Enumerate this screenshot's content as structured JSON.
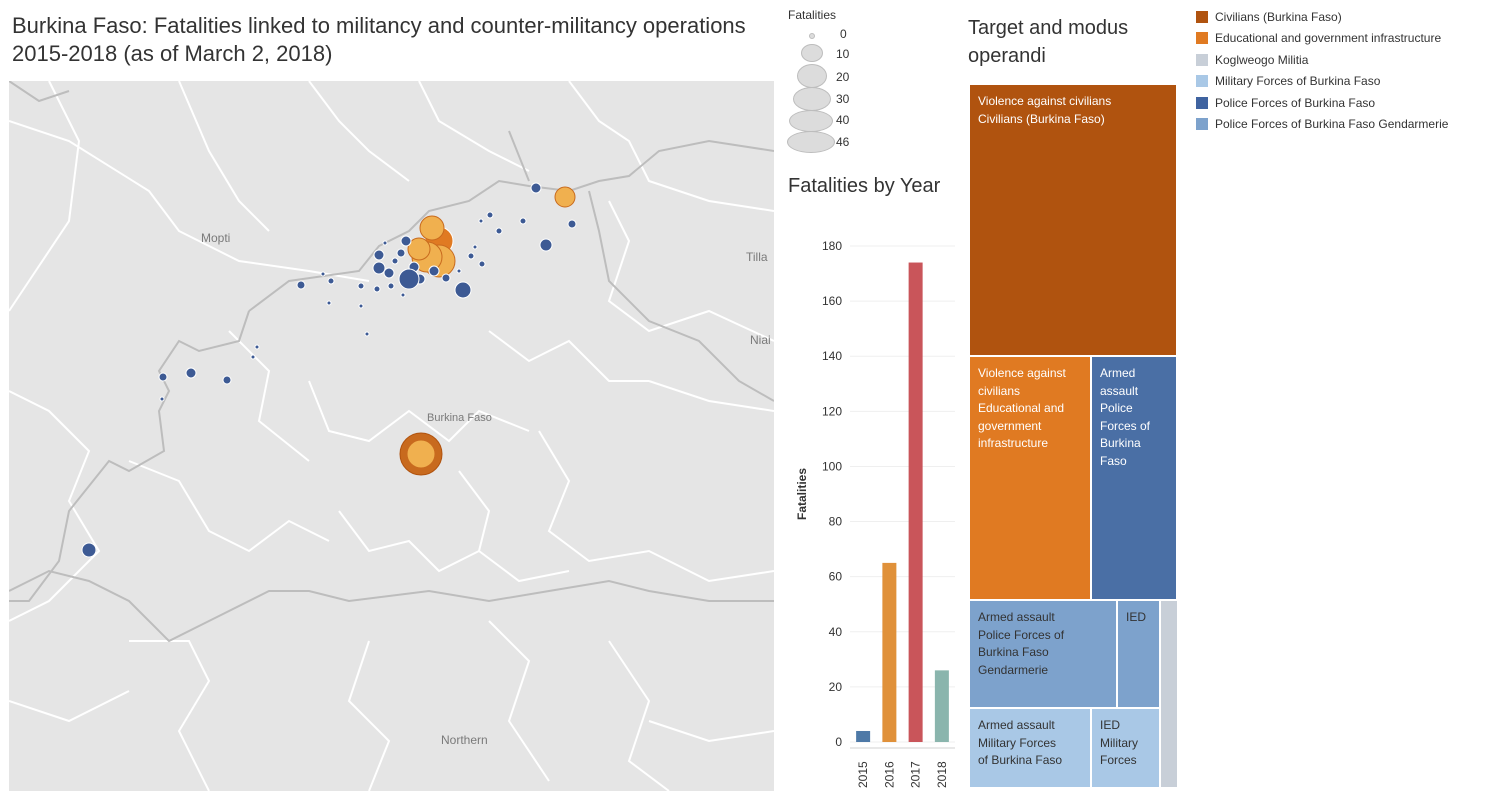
{
  "title": "Burkina Faso: Fatalities linked to militancy and counter-militancy operations 2015-2018 (as of March 2, 2018)",
  "map": {
    "labels": [
      "Mopti",
      "Burkina Faso",
      "Tilla",
      "Niai",
      "Northern"
    ],
    "colors": {
      "land": "#e5e5e5",
      "border": "#ffffff",
      "outline": "#b5b5b5",
      "dot_blue": "#3d5a94",
      "dot_orange": "#f0b04f",
      "dot_orange_dark": "#c86a1e"
    }
  },
  "size_legend": {
    "header": "Fatalities",
    "values": [
      "0",
      "10",
      "20",
      "30",
      "40",
      "46"
    ]
  },
  "year_chart_title": "Fatalities by Year",
  "chart_data": [
    {
      "type": "bar",
      "title": "Fatalities by Year",
      "xlabel": "",
      "ylabel": "Fatalities",
      "categories": [
        "2015",
        "2016",
        "2017",
        "2018"
      ],
      "values": [
        4,
        65,
        174,
        26
      ],
      "colors": [
        "#4e79a7",
        "#e0913a",
        "#c9555a",
        "#8ab5ad"
      ],
      "ylim": [
        0,
        180
      ],
      "yticks": [
        "0",
        "20",
        "40",
        "60",
        "80",
        "100",
        "120",
        "140",
        "160",
        "180"
      ],
      "grid": true
    },
    {
      "type": "treemap",
      "title": "Target and modus operandi",
      "cells": [
        {
          "lines": [
            "Violence against civilians",
            "Civilians (Burkina Faso)"
          ],
          "color": "#b0530f"
        },
        {
          "lines": [
            "Violence against",
            "civilians",
            "Educational and",
            "government",
            "infrastructure"
          ],
          "color": "#e07a22"
        },
        {
          "lines": [
            "Armed",
            "assault",
            "Police",
            "Forces of",
            "Burkina",
            "Faso"
          ],
          "color": "#4a6fa5"
        },
        {
          "lines": [
            "Armed assault",
            "Police Forces of",
            "Burkina Faso",
            "Gendarmerie"
          ],
          "color": "#7da2cc"
        },
        {
          "lines": [
            "IED"
          ],
          "color": "#7da2cc"
        },
        {
          "lines": [
            "Armed assault",
            "Military Forces",
            "of Burkina Faso"
          ],
          "color": "#a9c8e6"
        },
        {
          "lines": [
            "IED",
            "Military",
            "Forces"
          ],
          "color": "#a9c8e6"
        },
        {
          "lines": [],
          "color": "#c8cfd8"
        }
      ]
    }
  ],
  "treemap_title": "Target and modus operandi",
  "legend": [
    {
      "label": "Civilians (Burkina Faso)",
      "color": "#b0530f"
    },
    {
      "label": "Educational and government infrastructure",
      "color": "#e07a22"
    },
    {
      "label": "Koglweogo Militia",
      "color": "#c8cfd8"
    },
    {
      "label": "Military Forces of Burkina Faso",
      "color": "#a9c8e6"
    },
    {
      "label": "Police Forces of Burkina Faso",
      "color": "#3f63a0"
    },
    {
      "label": "Police Forces of Burkina Faso Gendarmerie",
      "color": "#7da2cc"
    }
  ]
}
